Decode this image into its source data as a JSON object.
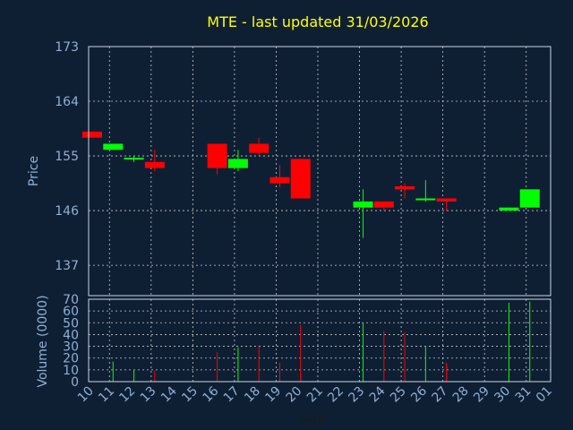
{
  "chart_data": {
    "type": "candlestick",
    "title": "MTE - last updated 31/03/2026",
    "xlabel": "Day",
    "price_axis": {
      "label": "Price",
      "ticks": [
        137,
        146,
        155,
        164,
        173
      ],
      "ylim": [
        132,
        173
      ]
    },
    "volume_axis": {
      "label": "Volume (0000)",
      "ticks": [
        0,
        10,
        20,
        30,
        40,
        50,
        60,
        70
      ],
      "ylim": [
        0,
        70
      ]
    },
    "x_tick_labels": [
      "10",
      "11",
      "12",
      "13",
      "14",
      "15",
      "16",
      "17",
      "18",
      "19",
      "20",
      "21",
      "22",
      "23",
      "24",
      "25",
      "26",
      "27",
      "28",
      "29",
      "30",
      "31",
      "01"
    ],
    "grid": true,
    "colors": {
      "up": "#00ff00",
      "down": "#ff0000",
      "title": "#ffff00",
      "axis_text": "#8fb0d6",
      "background": "#0f1f33",
      "grid": "#c8c8c8"
    },
    "candles": [
      {
        "day": "10",
        "open": 159.0,
        "high": 159.0,
        "low": 158.0,
        "close": 158.0,
        "volume": 0
      },
      {
        "day": "11",
        "open": 156.0,
        "high": 157.0,
        "low": 156.0,
        "close": 157.0,
        "volume": 17
      },
      {
        "day": "12",
        "open": 154.5,
        "high": 155.0,
        "low": 154.0,
        "close": 154.7,
        "volume": 10
      },
      {
        "day": "13",
        "open": 154.0,
        "high": 156.0,
        "low": 152.5,
        "close": 153.0,
        "volume": 9
      },
      {
        "day": "16",
        "open": 157.0,
        "high": 157.0,
        "low": 152.0,
        "close": 153.0,
        "volume": 25
      },
      {
        "day": "17",
        "open": 153.0,
        "high": 156.0,
        "low": 152.5,
        "close": 154.5,
        "volume": 29
      },
      {
        "day": "18",
        "open": 157.0,
        "high": 158.0,
        "low": 155.0,
        "close": 155.5,
        "volume": 30
      },
      {
        "day": "19",
        "open": 151.5,
        "high": 153.5,
        "low": 149.8,
        "close": 150.5,
        "volume": 16
      },
      {
        "day": "20",
        "open": 154.5,
        "high": 154.5,
        "low": 148.0,
        "close": 148.0,
        "volume": 48
      },
      {
        "day": "23",
        "open": 146.5,
        "high": 149.5,
        "low": 141.5,
        "close": 147.5,
        "volume": 50
      },
      {
        "day": "24",
        "open": 147.5,
        "high": 147.5,
        "low": 146.0,
        "close": 146.5,
        "volume": 43
      },
      {
        "day": "25",
        "open": 150.0,
        "high": 150.5,
        "low": 148.0,
        "close": 149.5,
        "volume": 42
      },
      {
        "day": "26",
        "open": 147.8,
        "high": 151.0,
        "low": 147.5,
        "close": 148.0,
        "volume": 30
      },
      {
        "day": "27",
        "open": 148.0,
        "high": 148.0,
        "low": 146.0,
        "close": 147.5,
        "volume": 16
      },
      {
        "day": "30",
        "open": 146.0,
        "high": 146.5,
        "low": 146.0,
        "close": 146.5,
        "volume": 67
      },
      {
        "day": "31",
        "open": 146.5,
        "high": 149.5,
        "low": 146.5,
        "close": 149.5,
        "volume": 68
      }
    ]
  }
}
